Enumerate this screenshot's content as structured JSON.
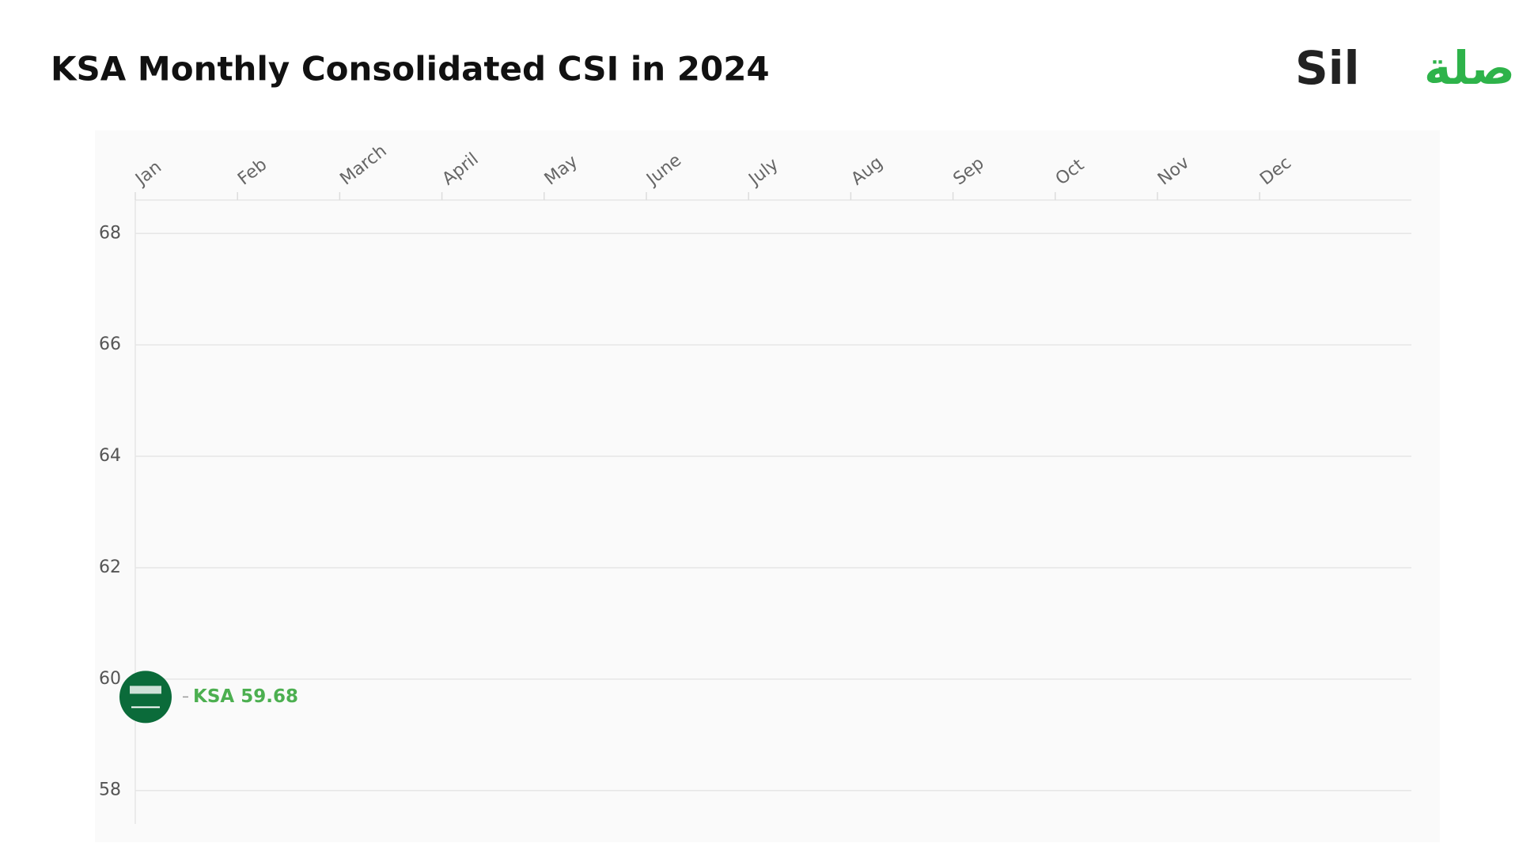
{
  "chart_data": {
    "type": "line",
    "title": "KSA Monthly Consolidated CSI in 2024",
    "logo": {
      "latin": "Sil",
      "arabic": "صلة"
    },
    "categories": [
      "Jan",
      "Feb",
      "March",
      "April",
      "May",
      "June",
      "July",
      "Aug",
      "Sep",
      "Oct",
      "Nov",
      "Dec"
    ],
    "series": [
      {
        "name": "KSA",
        "color": "#4caf50",
        "marker_color": "#0b6b3a",
        "values": [
          59.68,
          null,
          null,
          null,
          null,
          null,
          null,
          null,
          null,
          null,
          null,
          null
        ]
      }
    ],
    "ylim": [
      57.4,
      68.6
    ],
    "yticks": [
      58,
      60,
      62,
      64,
      66,
      68
    ],
    "grid": true
  }
}
